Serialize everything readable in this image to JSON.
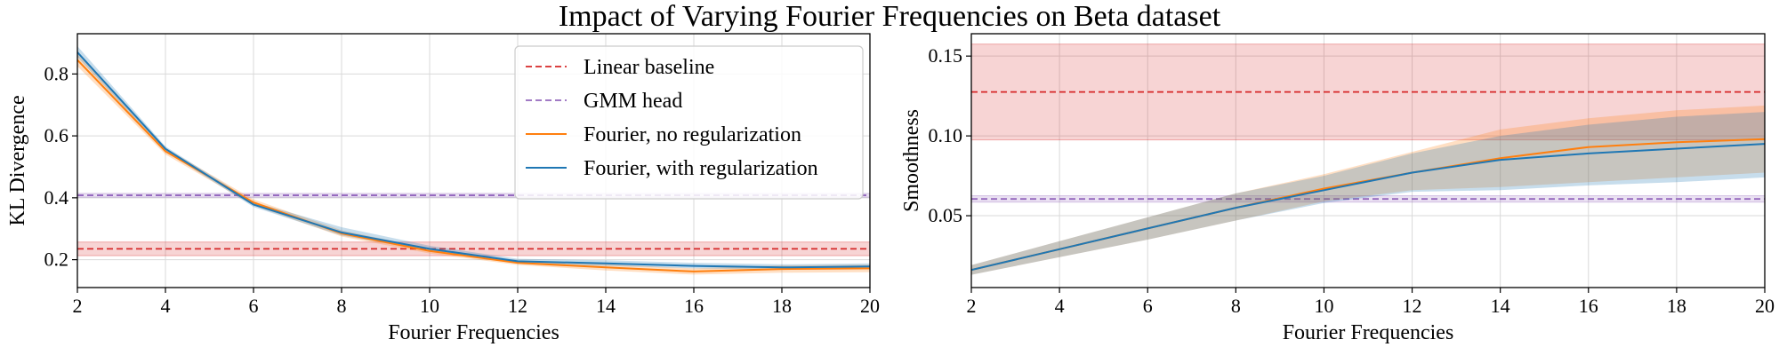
{
  "figure": {
    "title": "Impact of Varying Fourier Frequencies on Beta dataset"
  },
  "colors": {
    "linear": "#d62728",
    "gmm": "#9467bd",
    "fourier_noreg": "#ff7f0e",
    "fourier_reg": "#1f77b4"
  },
  "chart_data": [
    {
      "type": "line",
      "xlabel": "Fourier Frequencies",
      "ylabel": "KL Divergence",
      "xlim": [
        2,
        20
      ],
      "ylim": [
        0.11,
        0.93
      ],
      "xticks": [
        2,
        4,
        6,
        8,
        10,
        12,
        14,
        16,
        18,
        20
      ],
      "yticks": [
        0.2,
        0.4,
        0.6,
        0.8
      ],
      "grid": true,
      "legend": {
        "position": "top-right",
        "entries": [
          "Linear baseline",
          "GMM head",
          "Fourier, no regularization",
          "Fourier, with regularization"
        ]
      },
      "baselines": [
        {
          "name": "Linear baseline",
          "value": 0.235,
          "band": [
            0.213,
            0.257
          ],
          "style": "dashed"
        },
        {
          "name": "GMM head",
          "value": 0.408,
          "band": [
            0.402,
            0.414
          ],
          "style": "dashed"
        }
      ],
      "series": [
        {
          "name": "Fourier, no regularization",
          "x": [
            2,
            4,
            6,
            8,
            10,
            12,
            14,
            16,
            18,
            20
          ],
          "values": [
            0.845,
            0.55,
            0.385,
            0.285,
            0.228,
            0.19,
            0.175,
            0.162,
            0.17,
            0.172
          ],
          "lower": [
            0.825,
            0.54,
            0.375,
            0.275,
            0.22,
            0.183,
            0.165,
            0.152,
            0.158,
            0.16
          ],
          "upper": [
            0.865,
            0.56,
            0.395,
            0.295,
            0.236,
            0.197,
            0.185,
            0.172,
            0.182,
            0.184
          ]
        },
        {
          "name": "Fourier, with regularization",
          "x": [
            2,
            4,
            6,
            8,
            10,
            12,
            14,
            16,
            18,
            20
          ],
          "values": [
            0.87,
            0.558,
            0.378,
            0.288,
            0.235,
            0.195,
            0.188,
            0.18,
            0.175,
            0.178
          ],
          "lower": [
            0.855,
            0.55,
            0.37,
            0.278,
            0.228,
            0.188,
            0.18,
            0.172,
            0.168,
            0.17
          ],
          "upper": [
            0.89,
            0.566,
            0.386,
            0.305,
            0.245,
            0.203,
            0.198,
            0.19,
            0.185,
            0.188
          ]
        }
      ]
    },
    {
      "type": "line",
      "xlabel": "Fourier Frequencies",
      "ylabel": "Smoothness",
      "xlim": [
        2,
        20
      ],
      "ylim": [
        0.005,
        0.164
      ],
      "xticks": [
        2,
        4,
        6,
        8,
        10,
        12,
        14,
        16,
        18,
        20
      ],
      "yticks": [
        0.05,
        0.1,
        0.15
      ],
      "ytick_labels": [
        "0.05",
        "0.10",
        "0.15"
      ],
      "grid": true,
      "baselines": [
        {
          "name": "Linear baseline",
          "value": 0.1275,
          "band": [
            0.0975,
            0.1575
          ],
          "style": "dashed"
        },
        {
          "name": "GMM head",
          "value": 0.0605,
          "band": [
            0.0585,
            0.0625
          ],
          "style": "dashed"
        }
      ],
      "series": [
        {
          "name": "Fourier, no regularization",
          "x": [
            2,
            4,
            6,
            8,
            10,
            12,
            14,
            16,
            18,
            20
          ],
          "values": [
            0.016,
            0.029,
            0.042,
            0.055,
            0.067,
            0.077,
            0.086,
            0.093,
            0.096,
            0.098
          ],
          "lower": [
            0.013,
            0.024,
            0.035,
            0.047,
            0.059,
            0.066,
            0.068,
            0.071,
            0.074,
            0.077
          ],
          "upper": [
            0.019,
            0.034,
            0.049,
            0.064,
            0.076,
            0.09,
            0.104,
            0.111,
            0.116,
            0.119
          ]
        },
        {
          "name": "Fourier, with regularization",
          "x": [
            2,
            4,
            6,
            8,
            10,
            12,
            14,
            16,
            18,
            20
          ],
          "values": [
            0.016,
            0.029,
            0.042,
            0.055,
            0.066,
            0.077,
            0.085,
            0.089,
            0.092,
            0.095
          ],
          "lower": [
            0.013,
            0.024,
            0.035,
            0.047,
            0.058,
            0.065,
            0.066,
            0.069,
            0.071,
            0.074
          ],
          "upper": [
            0.019,
            0.034,
            0.049,
            0.064,
            0.075,
            0.089,
            0.1,
            0.107,
            0.112,
            0.115
          ]
        }
      ]
    }
  ]
}
